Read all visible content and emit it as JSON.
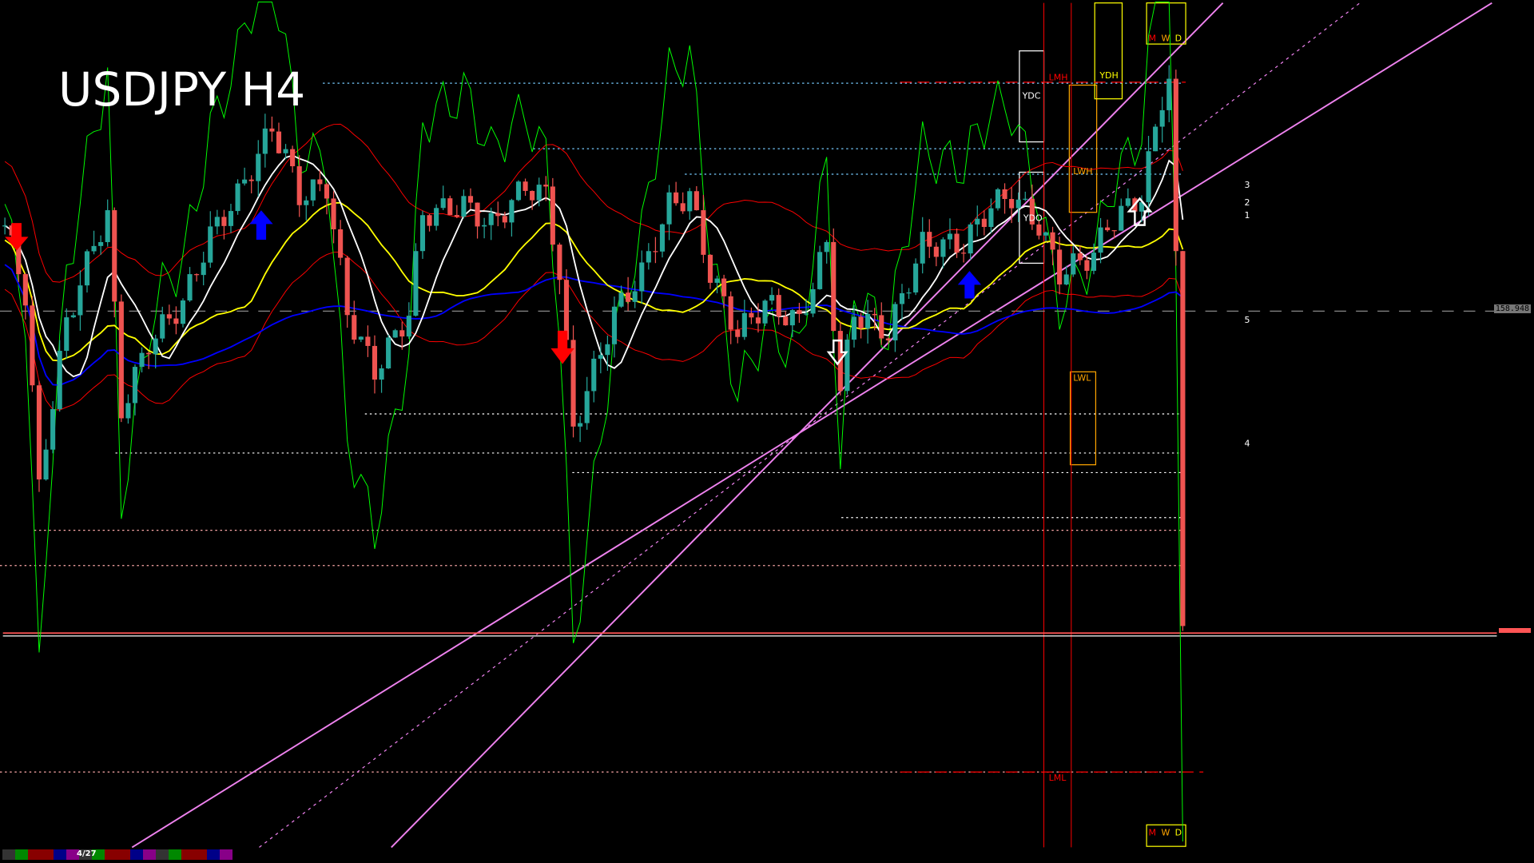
{
  "header": {
    "title": "USDJPY H4"
  },
  "price_labels": {
    "current": "158.948"
  },
  "level_labels": {
    "LMH": "LMH",
    "YDH": "YDH",
    "YDC": "YDC",
    "LWH": "LWH",
    "YDO": "YDO",
    "LWL": "LWL",
    "LML": "LML"
  },
  "period_labels": [
    "M",
    "W",
    "D"
  ],
  "projection_labels": [
    "1",
    "2",
    "3",
    "4",
    "5"
  ],
  "footer": {
    "bar_label": "4/27"
  },
  "colors": {
    "bull": "#26a69a",
    "bear": "#ef5350",
    "channel": "#ee82ee",
    "ma_fast": "#ffffff",
    "ma_mid": "#ffff00",
    "ma_slow": "#0000ff",
    "bands": "#ff0000",
    "osc": "#00ff00"
  },
  "chart_data": {
    "type": "candlestick",
    "title": "USDJPY H4",
    "current_price": 158.948,
    "series": [
      {
        "bar": 0,
        "close": 159.75
      },
      {
        "bar": 3,
        "close": 159.11
      },
      {
        "bar": 5,
        "close": 157.27
      },
      {
        "bar": 6,
        "close": 157.73
      },
      {
        "bar": 9,
        "close": 158.84
      },
      {
        "bar": 13,
        "close": 159.57
      },
      {
        "bar": 15,
        "close": 159.85
      },
      {
        "bar": 17,
        "close": 158.01
      },
      {
        "bar": 21,
        "close": 158.65
      },
      {
        "bar": 26,
        "close": 159.02
      },
      {
        "bar": 30,
        "close": 159.66
      },
      {
        "bar": 34,
        "close": 160.03
      },
      {
        "bar": 39,
        "close": 160.67
      },
      {
        "bar": 41,
        "close": 160.4
      },
      {
        "bar": 43,
        "close": 160.03
      },
      {
        "bar": 47,
        "close": 160.12
      },
      {
        "bar": 50,
        "close": 158.93
      },
      {
        "bar": 54,
        "close": 158.38
      },
      {
        "bar": 59,
        "close": 158.93
      },
      {
        "bar": 61,
        "close": 159.85
      },
      {
        "bar": 67,
        "close": 159.94
      },
      {
        "bar": 71,
        "close": 159.75
      },
      {
        "bar": 76,
        "close": 160.12
      },
      {
        "bar": 79,
        "close": 160.03
      },
      {
        "bar": 81,
        "close": 159.3
      },
      {
        "bar": 83,
        "close": 157.83
      },
      {
        "bar": 86,
        "close": 158.38
      },
      {
        "bar": 89,
        "close": 158.93
      },
      {
        "bar": 93,
        "close": 159.3
      },
      {
        "bar": 97,
        "close": 159.94
      },
      {
        "bar": 100,
        "close": 160.03
      },
      {
        "bar": 103,
        "close": 159.3
      },
      {
        "bar": 107,
        "close": 158.74
      },
      {
        "bar": 111,
        "close": 159.02
      },
      {
        "bar": 116,
        "close": 158.84
      },
      {
        "bar": 120,
        "close": 159.57
      },
      {
        "bar": 122,
        "close": 158.19
      },
      {
        "bar": 124,
        "close": 158.93
      },
      {
        "bar": 129,
        "close": 158.74
      },
      {
        "bar": 134,
        "close": 159.57
      },
      {
        "bar": 140,
        "close": 159.57
      },
      {
        "bar": 144,
        "close": 159.94
      },
      {
        "bar": 147,
        "close": 160.03
      },
      {
        "bar": 151,
        "close": 159.75
      },
      {
        "bar": 154,
        "close": 159.3
      },
      {
        "bar": 159,
        "close": 159.48
      },
      {
        "bar": 161,
        "close": 159.75
      },
      {
        "bar": 166,
        "close": 160.03
      },
      {
        "bar": 169,
        "close": 160.95
      },
      {
        "bar": 170,
        "close": 161.13
      },
      {
        "bar": 171,
        "close": 159.39
      },
      {
        "bar": 172,
        "close": 155.99
      }
    ],
    "grid": false
  }
}
